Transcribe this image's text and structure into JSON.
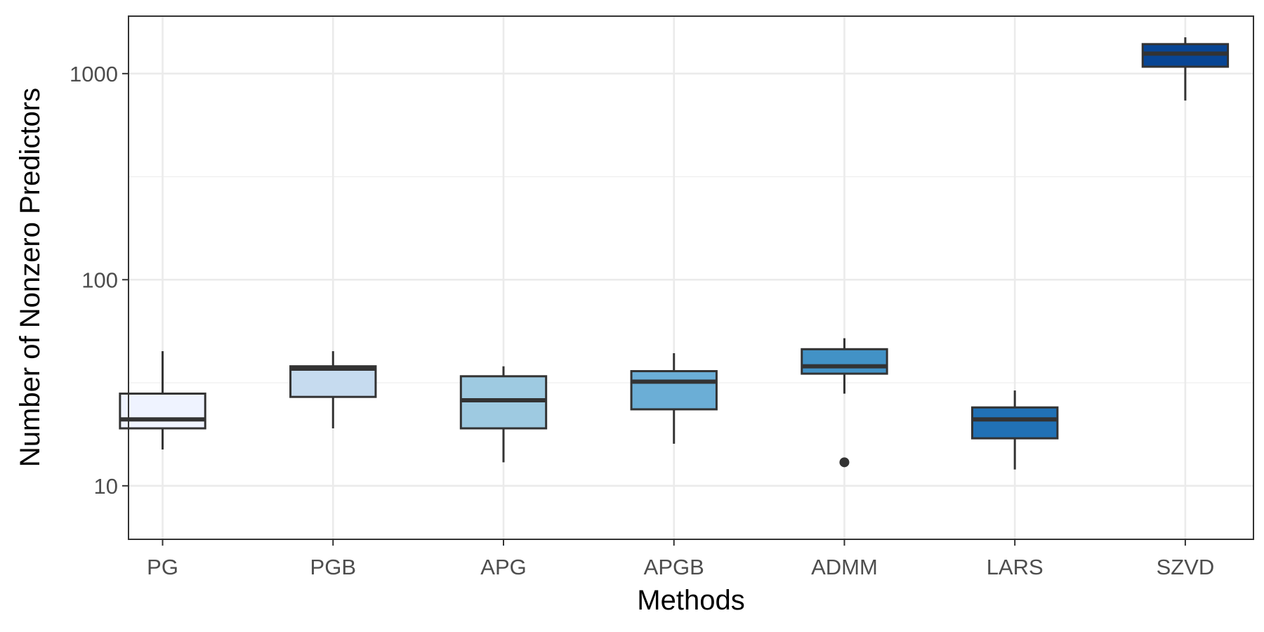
{
  "chart_data": {
    "type": "boxplot",
    "title": "",
    "xlabel": "Methods",
    "ylabel": "Number of Nonzero Predictors",
    "yscale": "log10",
    "ylim": [
      5.5,
      1900
    ],
    "yticks": [
      10,
      100,
      1000
    ],
    "ytick_labels": [
      "10",
      "100",
      "1000"
    ],
    "grid": true,
    "categories": [
      "PG",
      "PGB",
      "APG",
      "APGB",
      "ADMM",
      "LARS",
      "SZVD"
    ],
    "boxes": [
      {
        "name": "PG",
        "min": 15,
        "q1": 19,
        "median": 21,
        "q3": 28,
        "max": 45,
        "outliers": [],
        "color": "#eff3ff"
      },
      {
        "name": "PGB",
        "min": 19,
        "q1": 27,
        "median": 37,
        "q3": 38,
        "max": 45,
        "outliers": [],
        "color": "#c6dbef"
      },
      {
        "name": "APG",
        "min": 13,
        "q1": 19,
        "median": 26,
        "q3": 34,
        "max": 38,
        "outliers": [],
        "color": "#9ecae1"
      },
      {
        "name": "APGB",
        "min": 16,
        "q1": 23.5,
        "median": 32,
        "q3": 36,
        "max": 44,
        "outliers": [],
        "color": "#6baed6"
      },
      {
        "name": "ADMM",
        "min": 28,
        "q1": 35,
        "median": 38,
        "q3": 46,
        "max": 52,
        "outliers": [
          13
        ],
        "color": "#4292c6"
      },
      {
        "name": "LARS",
        "min": 12,
        "q1": 17,
        "median": 21,
        "q3": 24,
        "max": 29,
        "outliers": [],
        "color": "#2171b5"
      },
      {
        "name": "SZVD",
        "min": 740,
        "q1": 1080,
        "median": 1250,
        "q3": 1390,
        "max": 1500,
        "outliers": [],
        "color": "#084594"
      }
    ]
  }
}
